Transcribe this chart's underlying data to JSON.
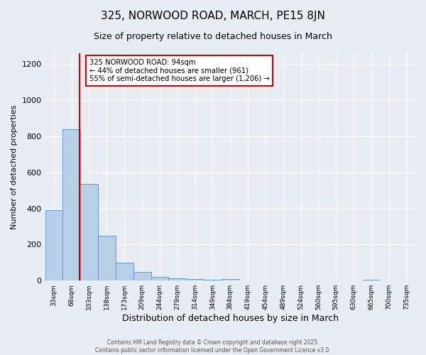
{
  "title1": "325, NORWOOD ROAD, MARCH, PE15 8JN",
  "title2": "Size of property relative to detached houses in March",
  "xlabel": "Distribution of detached houses by size in March",
  "ylabel": "Number of detached properties",
  "bins": [
    "33sqm",
    "68sqm",
    "103sqm",
    "138sqm",
    "173sqm",
    "209sqm",
    "244sqm",
    "279sqm",
    "314sqm",
    "349sqm",
    "384sqm",
    "419sqm",
    "454sqm",
    "489sqm",
    "524sqm",
    "560sqm",
    "595sqm",
    "630sqm",
    "665sqm",
    "700sqm",
    "735sqm"
  ],
  "bar_heights": [
    390,
    840,
    535,
    248,
    98,
    50,
    20,
    12,
    8,
    5,
    10,
    0,
    0,
    0,
    0,
    0,
    0,
    0,
    5,
    0,
    0
  ],
  "bar_color": "#b8cfe8",
  "bar_edge_color": "#6699cc",
  "vline_x_bin": 1.45,
  "vline_color": "#cc0000",
  "annotation_text": "325 NORWOOD ROAD: 94sqm\n← 44% of detached houses are smaller (961)\n55% of semi-detached houses are larger (1,206) →",
  "annotation_box_color": "#ffffff",
  "annotation_box_edge": "#cc0000",
  "ylim": [
    0,
    1260
  ],
  "yticks": [
    0,
    200,
    400,
    600,
    800,
    1000,
    1200
  ],
  "background_color": "#e8edf3",
  "footer1": "Contains HM Land Registry data © Crown copyright and database right 2025.",
  "footer2": "Contains public sector information licensed under the Open Government Licence v3.0."
}
